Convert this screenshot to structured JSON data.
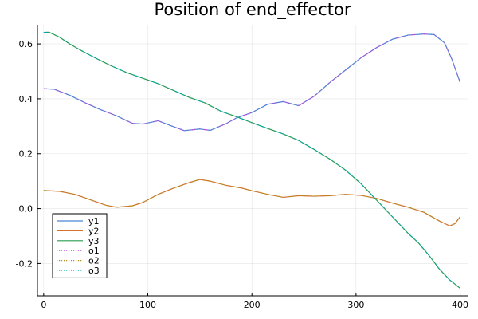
{
  "chart_data": {
    "type": "line",
    "title": "Position of end_effector",
    "xlabel": "",
    "ylabel": "",
    "xlim": [
      -6,
      408
    ],
    "ylim": [
      -0.318,
      0.67
    ],
    "xticks": [
      0,
      100,
      200,
      300,
      400
    ],
    "xtick_labels": [
      "0",
      "100",
      "200",
      "300",
      "400"
    ],
    "yticks": [
      -0.2,
      0.0,
      0.2,
      0.4,
      0.6
    ],
    "ytick_labels": [
      "-0.2",
      "0.0",
      "0.2",
      "0.4",
      "0.6"
    ],
    "grid": true,
    "legend_position": "bottom-left",
    "series": [
      {
        "name": "y1",
        "color": "#4a86d8",
        "style": "solid",
        "x": [
          0,
          10,
          25,
          40,
          55,
          70,
          85,
          95,
          110,
          120,
          135,
          150,
          160,
          175,
          185,
          200,
          215,
          230,
          245,
          260,
          275,
          290,
          305,
          320,
          335,
          350,
          365,
          375,
          385,
          392,
          400
        ],
        "y": [
          0.437,
          0.435,
          0.413,
          0.385,
          0.36,
          0.338,
          0.311,
          0.308,
          0.32,
          0.305,
          0.284,
          0.29,
          0.285,
          0.309,
          0.33,
          0.35,
          0.38,
          0.39,
          0.375,
          0.41,
          0.46,
          0.505,
          0.55,
          0.587,
          0.617,
          0.632,
          0.636,
          0.634,
          0.604,
          0.545,
          0.46
        ]
      },
      {
        "name": "y2",
        "color": "#d4712b",
        "style": "solid",
        "x": [
          0,
          15,
          30,
          45,
          60,
          70,
          85,
          95,
          110,
          125,
          140,
          150,
          160,
          175,
          190,
          200,
          215,
          230,
          245,
          260,
          275,
          290,
          305,
          320,
          335,
          350,
          365,
          380,
          390,
          395,
          400
        ],
        "y": [
          0.066,
          0.063,
          0.052,
          0.032,
          0.012,
          0.005,
          0.01,
          0.022,
          0.052,
          0.075,
          0.095,
          0.106,
          0.1,
          0.085,
          0.075,
          0.065,
          0.052,
          0.041,
          0.047,
          0.045,
          0.047,
          0.052,
          0.048,
          0.037,
          0.02,
          0.005,
          -0.013,
          -0.045,
          -0.063,
          -0.055,
          -0.03
        ]
      },
      {
        "name": "y3",
        "color": "#2a9b4f",
        "style": "solid",
        "x": [
          0,
          5,
          15,
          25,
          35,
          50,
          65,
          80,
          95,
          110,
          125,
          140,
          155,
          170,
          185,
          200,
          215,
          230,
          245,
          260,
          275,
          290,
          305,
          320,
          335,
          350,
          360,
          370,
          380,
          390,
          400
        ],
        "y": [
          0.642,
          0.643,
          0.625,
          0.6,
          0.578,
          0.548,
          0.52,
          0.495,
          0.475,
          0.455,
          0.43,
          0.405,
          0.385,
          0.355,
          0.335,
          0.313,
          0.292,
          0.272,
          0.248,
          0.215,
          0.18,
          0.14,
          0.09,
          0.03,
          -0.03,
          -0.09,
          -0.125,
          -0.17,
          -0.22,
          -0.26,
          -0.29
        ]
      },
      {
        "name": "o1",
        "color": "#b04fd6",
        "style": "dotted",
        "x": [
          0,
          10,
          25,
          40,
          55,
          70,
          85,
          95,
          110,
          120,
          135,
          150,
          160,
          175,
          185,
          200,
          215,
          230,
          245,
          260,
          275,
          290,
          305,
          320,
          335,
          350,
          365,
          375,
          385,
          392,
          400
        ],
        "y": [
          0.437,
          0.435,
          0.413,
          0.385,
          0.36,
          0.338,
          0.311,
          0.308,
          0.32,
          0.305,
          0.284,
          0.29,
          0.285,
          0.309,
          0.33,
          0.35,
          0.38,
          0.39,
          0.375,
          0.41,
          0.46,
          0.505,
          0.55,
          0.587,
          0.617,
          0.632,
          0.636,
          0.634,
          0.604,
          0.545,
          0.46
        ]
      },
      {
        "name": "o2",
        "color": "#b38b1e",
        "style": "dotted",
        "x": [
          0,
          15,
          30,
          45,
          60,
          70,
          85,
          95,
          110,
          125,
          140,
          150,
          160,
          175,
          190,
          200,
          215,
          230,
          245,
          260,
          275,
          290,
          305,
          320,
          335,
          350,
          365,
          380,
          390,
          395,
          400
        ],
        "y": [
          0.066,
          0.063,
          0.052,
          0.032,
          0.012,
          0.005,
          0.01,
          0.022,
          0.052,
          0.075,
          0.095,
          0.106,
          0.1,
          0.085,
          0.075,
          0.065,
          0.052,
          0.041,
          0.047,
          0.045,
          0.047,
          0.052,
          0.048,
          0.037,
          0.02,
          0.005,
          -0.013,
          -0.045,
          -0.063,
          -0.055,
          -0.03
        ]
      },
      {
        "name": "o3",
        "color": "#00a9ad",
        "style": "dotted",
        "x": [
          0,
          5,
          15,
          25,
          35,
          50,
          65,
          80,
          95,
          110,
          125,
          140,
          155,
          170,
          185,
          200,
          215,
          230,
          245,
          260,
          275,
          290,
          305,
          320,
          335,
          350,
          360,
          370,
          380,
          390,
          400
        ],
        "y": [
          0.642,
          0.643,
          0.625,
          0.6,
          0.578,
          0.548,
          0.52,
          0.495,
          0.475,
          0.455,
          0.43,
          0.405,
          0.385,
          0.355,
          0.335,
          0.313,
          0.292,
          0.272,
          0.248,
          0.215,
          0.18,
          0.14,
          0.09,
          0.03,
          -0.03,
          -0.09,
          -0.125,
          -0.17,
          -0.22,
          -0.26,
          -0.29
        ]
      }
    ]
  }
}
